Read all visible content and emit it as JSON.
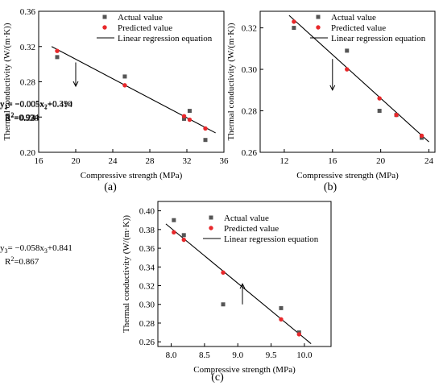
{
  "chart_data": [
    {
      "type": "scatter",
      "panel_label": "(a)",
      "xlabel": "Compressive strength (MPa)",
      "ylabel": "Thermal conductivity (W/(m·K))",
      "xlim": [
        16,
        36
      ],
      "ylim": [
        0.2,
        0.36
      ],
      "xticks": [
        "16",
        "20",
        "24",
        "28",
        "32",
        "36"
      ],
      "yticks": [
        "0.20",
        "0.24",
        "0.28",
        "0.32",
        "0.36"
      ],
      "legend": {
        "placement": "top-right",
        "actual": "Actual value",
        "predicted": "Predicted value",
        "line": "Linear regression equation"
      },
      "series": [
        {
          "name": "Actual value",
          "x": [
            18.0,
            25.3,
            31.7,
            32.3,
            34.0
          ],
          "y": [
            0.308,
            0.286,
            0.238,
            0.247,
            0.214
          ]
        },
        {
          "name": "Predicted value",
          "x": [
            18.0,
            25.3,
            31.7,
            32.3,
            34.0
          ],
          "y": [
            0.315,
            0.276,
            0.241,
            0.237,
            0.227
          ]
        }
      ],
      "regression": {
        "x": [
          17.4,
          35.1
        ],
        "y": [
          0.32,
          0.222
        ]
      },
      "equation": {
        "y": "y",
        "sub": "1",
        "mid": "= −0.005x",
        "sub2": "1",
        "tail": "+0.414",
        "r2": "=0.928"
      }
    },
    {
      "type": "scatter",
      "panel_label": "(b)",
      "xlabel": "Compressive strength (MPa)",
      "ylabel": "Thermal conductivity (W/(m·K))",
      "xlim": [
        10,
        24.5
      ],
      "ylim": [
        0.26,
        0.328
      ],
      "xticks": [
        "12",
        "16",
        "20",
        "24"
      ],
      "yticks": [
        "0.26",
        "0.28",
        "0.30",
        "0.32"
      ],
      "legend": {
        "placement": "top-right",
        "actual": "Actual value",
        "predicted": "Predicted value",
        "line": "Linear regression equation"
      },
      "series": [
        {
          "name": "Actual value",
          "x": [
            12.8,
            17.2,
            19.9,
            21.3,
            23.4
          ],
          "y": [
            0.32,
            0.309,
            0.28,
            0.278,
            0.267
          ]
        },
        {
          "name": "Predicted value",
          "x": [
            12.8,
            17.2,
            19.9,
            21.3,
            23.4
          ],
          "y": [
            0.323,
            0.3,
            0.286,
            0.278,
            0.268
          ]
        }
      ],
      "regression": {
        "x": [
          12.4,
          24.0
        ],
        "y": [
          0.326,
          0.265
        ]
      },
      "equation": {
        "y": "y",
        "sub": "2",
        "mid": "= −0.005x",
        "sub2": "2",
        "tail": "+0.390",
        "r2": "=0.934"
      }
    },
    {
      "type": "scatter",
      "panel_label": "(c)",
      "xlabel": "Compressive strength (MPa)",
      "ylabel": "Thermal conductivity (W/(m·K))",
      "xlim": [
        7.8,
        10.4
      ],
      "ylim": [
        0.255,
        0.41
      ],
      "xticks": [
        "8.0",
        "8.5",
        "9.0",
        "9.5",
        "10.0"
      ],
      "yticks": [
        "0.26",
        "0.28",
        "0.30",
        "0.32",
        "0.34",
        "0.36",
        "0.38",
        "0.40"
      ],
      "legend": {
        "placement": "top-right",
        "actual": "Actual value",
        "predicted": "Predicted value",
        "line": "Linear regression equation"
      },
      "series": [
        {
          "name": "Actual value",
          "x": [
            8.04,
            8.19,
            8.78,
            9.65,
            9.92
          ],
          "y": [
            0.39,
            0.374,
            0.3,
            0.296,
            0.27
          ]
        },
        {
          "name": "Predicted value",
          "x": [
            8.04,
            8.19,
            8.78,
            9.65,
            9.92
          ],
          "y": [
            0.377,
            0.369,
            0.334,
            0.284,
            0.268
          ]
        }
      ],
      "regression": {
        "x": [
          7.92,
          10.1
        ],
        "y": [
          0.386,
          0.258
        ]
      },
      "equation": {
        "y": "y",
        "sub": "3",
        "mid": "= −0.058x",
        "sub2": "3",
        "tail": "+0.841",
        "r2": "=0.867"
      }
    }
  ]
}
